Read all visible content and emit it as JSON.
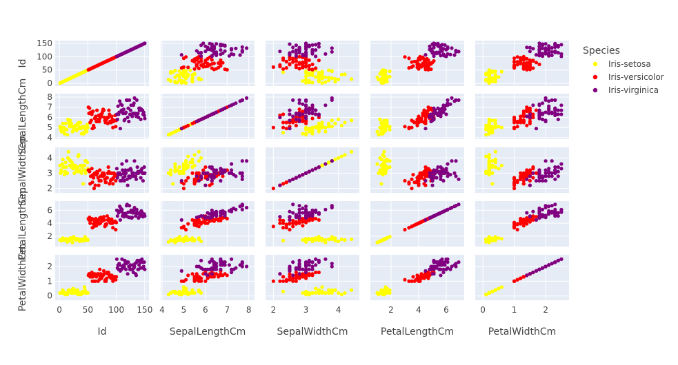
{
  "chart_data": {
    "type": "scatter",
    "variables": [
      "Id",
      "SepalLengthCm",
      "SepalWidthCm",
      "PetalLengthCm",
      "PetalWidthCm"
    ],
    "axis_labels": [
      "Id",
      "SepalLengthCm",
      "SepalWidthCm",
      "PetalLengthCm",
      "PetalWidthCm"
    ],
    "legend": {
      "title": "Species",
      "placement": "right"
    },
    "series": [
      {
        "name": "Iris-setosa",
        "color": "#ffff00"
      },
      {
        "name": "Iris-versicolor",
        "color": "#ff0000"
      },
      {
        "name": "Iris-virginica",
        "color": "#800080"
      }
    ],
    "axes": [
      {
        "range": [
          -5,
          155
        ],
        "ticks": [
          0,
          50,
          100,
          150
        ],
        "tick_labels": [
          "0",
          "50",
          "100",
          "150"
        ]
      },
      {
        "range": [
          4.0,
          8.2
        ],
        "ticks": [
          4,
          5,
          6,
          7,
          8
        ],
        "tick_labels": [
          "4",
          "5",
          "6",
          "7",
          "8"
        ]
      },
      {
        "range": [
          1.8,
          4.6
        ],
        "ticks": [
          2,
          3,
          4
        ],
        "tick_labels": [
          "2",
          "3",
          "4"
        ]
      },
      {
        "range": [
          0.6,
          7.2
        ],
        "ticks": [
          2,
          4,
          6
        ],
        "tick_labels": [
          "2",
          "4",
          "6"
        ]
      },
      {
        "range": [
          -0.2,
          2.7
        ],
        "ticks": [
          0,
          1,
          2
        ],
        "tick_labels": [
          "0",
          "1",
          "2"
        ]
      }
    ],
    "grid": true,
    "diagonal": "scatter",
    "background_color": "#e5ecf6",
    "records": [
      [
        1,
        5.1,
        3.5,
        1.4,
        0.2,
        0
      ],
      [
        2,
        4.9,
        3.0,
        1.4,
        0.2,
        0
      ],
      [
        3,
        4.7,
        3.2,
        1.3,
        0.2,
        0
      ],
      [
        4,
        4.6,
        3.1,
        1.5,
        0.2,
        0
      ],
      [
        5,
        5.0,
        3.6,
        1.4,
        0.2,
        0
      ],
      [
        6,
        5.4,
        3.9,
        1.7,
        0.4,
        0
      ],
      [
        7,
        4.6,
        3.4,
        1.4,
        0.3,
        0
      ],
      [
        8,
        5.0,
        3.4,
        1.5,
        0.2,
        0
      ],
      [
        9,
        4.4,
        2.9,
        1.4,
        0.2,
        0
      ],
      [
        10,
        4.9,
        3.1,
        1.5,
        0.1,
        0
      ],
      [
        11,
        5.4,
        3.7,
        1.5,
        0.2,
        0
      ],
      [
        12,
        4.8,
        3.4,
        1.6,
        0.2,
        0
      ],
      [
        13,
        4.8,
        3.0,
        1.4,
        0.1,
        0
      ],
      [
        14,
        4.3,
        3.0,
        1.1,
        0.1,
        0
      ],
      [
        15,
        5.8,
        4.0,
        1.2,
        0.2,
        0
      ],
      [
        16,
        5.7,
        4.4,
        1.5,
        0.4,
        0
      ],
      [
        17,
        5.4,
        3.9,
        1.3,
        0.4,
        0
      ],
      [
        18,
        5.1,
        3.5,
        1.4,
        0.3,
        0
      ],
      [
        19,
        5.7,
        3.8,
        1.7,
        0.3,
        0
      ],
      [
        20,
        5.1,
        3.8,
        1.5,
        0.3,
        0
      ],
      [
        21,
        5.4,
        3.4,
        1.7,
        0.2,
        0
      ],
      [
        22,
        5.1,
        3.7,
        1.5,
        0.4,
        0
      ],
      [
        23,
        4.6,
        3.6,
        1.0,
        0.2,
        0
      ],
      [
        24,
        5.1,
        3.3,
        1.7,
        0.5,
        0
      ],
      [
        25,
        4.8,
        3.4,
        1.9,
        0.2,
        0
      ],
      [
        26,
        5.0,
        3.0,
        1.6,
        0.2,
        0
      ],
      [
        27,
        5.0,
        3.4,
        1.6,
        0.4,
        0
      ],
      [
        28,
        5.2,
        3.5,
        1.5,
        0.2,
        0
      ],
      [
        29,
        5.2,
        3.4,
        1.4,
        0.2,
        0
      ],
      [
        30,
        4.7,
        3.2,
        1.6,
        0.2,
        0
      ],
      [
        31,
        4.8,
        3.1,
        1.6,
        0.2,
        0
      ],
      [
        32,
        5.4,
        3.4,
        1.5,
        0.4,
        0
      ],
      [
        33,
        5.2,
        4.1,
        1.5,
        0.1,
        0
      ],
      [
        34,
        5.5,
        4.2,
        1.4,
        0.2,
        0
      ],
      [
        35,
        4.9,
        3.1,
        1.5,
        0.1,
        0
      ],
      [
        36,
        5.0,
        3.2,
        1.2,
        0.2,
        0
      ],
      [
        37,
        5.5,
        3.5,
        1.3,
        0.2,
        0
      ],
      [
        38,
        4.9,
        3.1,
        1.5,
        0.1,
        0
      ],
      [
        39,
        4.4,
        3.0,
        1.3,
        0.2,
        0
      ],
      [
        40,
        5.1,
        3.4,
        1.5,
        0.2,
        0
      ],
      [
        41,
        5.0,
        3.5,
        1.3,
        0.3,
        0
      ],
      [
        42,
        4.5,
        2.3,
        1.3,
        0.3,
        0
      ],
      [
        43,
        4.4,
        3.2,
        1.3,
        0.2,
        0
      ],
      [
        44,
        5.0,
        3.5,
        1.6,
        0.6,
        0
      ],
      [
        45,
        5.1,
        3.8,
        1.9,
        0.4,
        0
      ],
      [
        46,
        4.8,
        3.0,
        1.4,
        0.3,
        0
      ],
      [
        47,
        5.1,
        3.8,
        1.6,
        0.2,
        0
      ],
      [
        48,
        4.6,
        3.2,
        1.4,
        0.2,
        0
      ],
      [
        49,
        5.3,
        3.7,
        1.5,
        0.2,
        0
      ],
      [
        50,
        5.0,
        3.3,
        1.4,
        0.2,
        0
      ],
      [
        51,
        7.0,
        3.2,
        4.7,
        1.4,
        1
      ],
      [
        52,
        6.4,
        3.2,
        4.5,
        1.5,
        1
      ],
      [
        53,
        6.9,
        3.1,
        4.9,
        1.5,
        1
      ],
      [
        54,
        5.5,
        2.3,
        4.0,
        1.3,
        1
      ],
      [
        55,
        6.5,
        2.8,
        4.6,
        1.5,
        1
      ],
      [
        56,
        5.7,
        2.8,
        4.5,
        1.3,
        1
      ],
      [
        57,
        6.3,
        3.3,
        4.7,
        1.6,
        1
      ],
      [
        58,
        4.9,
        2.4,
        3.3,
        1.0,
        1
      ],
      [
        59,
        6.6,
        2.9,
        4.6,
        1.3,
        1
      ],
      [
        60,
        5.2,
        2.7,
        3.9,
        1.4,
        1
      ],
      [
        61,
        5.0,
        2.0,
        3.5,
        1.0,
        1
      ],
      [
        62,
        5.9,
        3.0,
        4.2,
        1.5,
        1
      ],
      [
        63,
        6.0,
        2.2,
        4.0,
        1.0,
        1
      ],
      [
        64,
        6.1,
        2.9,
        4.7,
        1.4,
        1
      ],
      [
        65,
        5.6,
        2.9,
        3.6,
        1.3,
        1
      ],
      [
        66,
        6.7,
        3.1,
        4.4,
        1.4,
        1
      ],
      [
        67,
        5.6,
        3.0,
        4.5,
        1.5,
        1
      ],
      [
        68,
        5.8,
        2.7,
        4.1,
        1.0,
        1
      ],
      [
        69,
        6.2,
        2.2,
        4.5,
        1.5,
        1
      ],
      [
        70,
        5.6,
        2.5,
        3.9,
        1.1,
        1
      ],
      [
        71,
        5.9,
        3.2,
        4.8,
        1.8,
        1
      ],
      [
        72,
        6.1,
        2.8,
        4.0,
        1.3,
        1
      ],
      [
        73,
        6.3,
        2.5,
        4.9,
        1.5,
        1
      ],
      [
        74,
        6.1,
        2.8,
        4.7,
        1.2,
        1
      ],
      [
        75,
        6.4,
        2.9,
        4.3,
        1.3,
        1
      ],
      [
        76,
        6.6,
        3.0,
        4.4,
        1.4,
        1
      ],
      [
        77,
        6.8,
        2.8,
        4.8,
        1.4,
        1
      ],
      [
        78,
        6.7,
        3.0,
        5.0,
        1.7,
        1
      ],
      [
        79,
        6.0,
        2.9,
        4.5,
        1.5,
        1
      ],
      [
        80,
        5.7,
        2.6,
        3.5,
        1.0,
        1
      ],
      [
        81,
        5.5,
        2.4,
        3.8,
        1.1,
        1
      ],
      [
        82,
        5.5,
        2.4,
        3.7,
        1.0,
        1
      ],
      [
        83,
        5.8,
        2.7,
        3.9,
        1.2,
        1
      ],
      [
        84,
        6.0,
        2.7,
        5.1,
        1.6,
        1
      ],
      [
        85,
        5.4,
        3.0,
        4.5,
        1.5,
        1
      ],
      [
        86,
        6.0,
        3.4,
        4.5,
        1.6,
        1
      ],
      [
        87,
        6.7,
        3.1,
        4.7,
        1.5,
        1
      ],
      [
        88,
        6.3,
        2.3,
        4.4,
        1.3,
        1
      ],
      [
        89,
        5.6,
        3.0,
        4.1,
        1.3,
        1
      ],
      [
        90,
        5.5,
        2.5,
        4.0,
        1.3,
        1
      ],
      [
        91,
        5.5,
        2.6,
        4.4,
        1.2,
        1
      ],
      [
        92,
        6.1,
        3.0,
        4.6,
        1.4,
        1
      ],
      [
        93,
        5.8,
        2.6,
        4.0,
        1.2,
        1
      ],
      [
        94,
        5.0,
        2.3,
        3.3,
        1.0,
        1
      ],
      [
        95,
        5.6,
        2.7,
        4.2,
        1.3,
        1
      ],
      [
        96,
        5.7,
        3.0,
        4.2,
        1.2,
        1
      ],
      [
        97,
        5.7,
        2.9,
        4.2,
        1.3,
        1
      ],
      [
        98,
        6.2,
        2.9,
        4.3,
        1.3,
        1
      ],
      [
        99,
        5.1,
        2.5,
        3.0,
        1.1,
        1
      ],
      [
        100,
        5.7,
        2.8,
        4.1,
        1.3,
        1
      ],
      [
        101,
        6.3,
        3.3,
        6.0,
        2.5,
        2
      ],
      [
        102,
        5.8,
        2.7,
        5.1,
        1.9,
        2
      ],
      [
        103,
        7.1,
        3.0,
        5.9,
        2.1,
        2
      ],
      [
        104,
        6.3,
        2.9,
        5.6,
        1.8,
        2
      ],
      [
        105,
        6.5,
        3.0,
        5.8,
        2.2,
        2
      ],
      [
        106,
        7.6,
        3.0,
        6.6,
        2.1,
        2
      ],
      [
        107,
        4.9,
        2.5,
        4.5,
        1.7,
        2
      ],
      [
        108,
        7.3,
        2.9,
        6.3,
        1.8,
        2
      ],
      [
        109,
        6.7,
        2.5,
        5.8,
        1.8,
        2
      ],
      [
        110,
        7.2,
        3.6,
        6.1,
        2.5,
        2
      ],
      [
        111,
        6.5,
        3.2,
        5.1,
        2.0,
        2
      ],
      [
        112,
        6.4,
        2.7,
        5.3,
        1.9,
        2
      ],
      [
        113,
        6.8,
        3.0,
        5.5,
        2.1,
        2
      ],
      [
        114,
        5.7,
        2.5,
        5.0,
        2.0,
        2
      ],
      [
        115,
        5.8,
        2.8,
        5.1,
        2.4,
        2
      ],
      [
        116,
        6.4,
        3.2,
        5.3,
        2.3,
        2
      ],
      [
        117,
        6.5,
        3.0,
        5.5,
        1.8,
        2
      ],
      [
        118,
        7.7,
        3.8,
        6.7,
        2.2,
        2
      ],
      [
        119,
        7.7,
        2.6,
        6.9,
        2.3,
        2
      ],
      [
        120,
        6.0,
        2.2,
        5.0,
        1.5,
        2
      ],
      [
        121,
        6.9,
        3.2,
        5.7,
        2.3,
        2
      ],
      [
        122,
        5.6,
        2.8,
        4.9,
        2.0,
        2
      ],
      [
        123,
        7.7,
        2.8,
        6.7,
        2.0,
        2
      ],
      [
        124,
        6.3,
        2.7,
        4.9,
        1.8,
        2
      ],
      [
        125,
        6.7,
        3.3,
        5.7,
        2.1,
        2
      ],
      [
        126,
        7.2,
        3.2,
        6.0,
        1.8,
        2
      ],
      [
        127,
        6.2,
        2.8,
        4.8,
        1.8,
        2
      ],
      [
        128,
        6.1,
        3.0,
        4.9,
        1.8,
        2
      ],
      [
        129,
        6.4,
        2.8,
        5.6,
        2.1,
        2
      ],
      [
        130,
        7.2,
        3.0,
        5.8,
        1.6,
        2
      ],
      [
        131,
        7.4,
        2.8,
        6.1,
        1.9,
        2
      ],
      [
        132,
        7.9,
        3.8,
        6.4,
        2.0,
        2
      ],
      [
        133,
        6.4,
        2.8,
        5.6,
        2.2,
        2
      ],
      [
        134,
        6.3,
        2.8,
        5.1,
        1.5,
        2
      ],
      [
        135,
        6.1,
        2.6,
        5.6,
        1.4,
        2
      ],
      [
        136,
        7.7,
        3.0,
        6.1,
        2.3,
        2
      ],
      [
        137,
        6.3,
        3.4,
        5.6,
        2.4,
        2
      ],
      [
        138,
        6.4,
        3.1,
        5.5,
        1.8,
        2
      ],
      [
        139,
        6.0,
        3.0,
        4.8,
        1.8,
        2
      ],
      [
        140,
        6.9,
        3.1,
        5.4,
        2.1,
        2
      ],
      [
        141,
        6.7,
        3.1,
        5.6,
        2.4,
        2
      ],
      [
        142,
        6.9,
        3.1,
        5.1,
        2.3,
        2
      ],
      [
        143,
        5.8,
        2.7,
        5.1,
        1.9,
        2
      ],
      [
        144,
        6.8,
        3.2,
        5.9,
        2.3,
        2
      ],
      [
        145,
        6.7,
        3.3,
        5.7,
        2.5,
        2
      ],
      [
        146,
        6.7,
        3.0,
        5.2,
        2.3,
        2
      ],
      [
        147,
        6.3,
        2.5,
        5.0,
        1.9,
        2
      ],
      [
        148,
        6.5,
        3.0,
        5.2,
        2.0,
        2
      ],
      [
        149,
        6.2,
        3.4,
        5.4,
        2.3,
        2
      ],
      [
        150,
        5.9,
        3.0,
        5.1,
        1.8,
        2
      ]
    ]
  }
}
